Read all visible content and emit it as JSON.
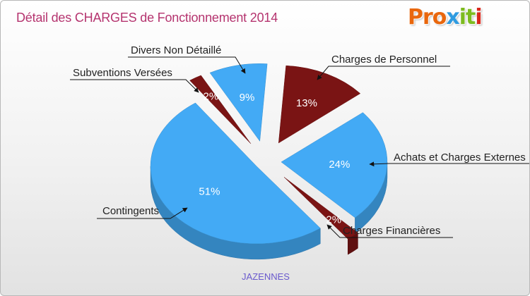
{
  "logo": {
    "parts": [
      "Pro",
      "x",
      "it",
      "i"
    ]
  },
  "colors": {
    "title": "#b5346f",
    "blue": "#43aaf5",
    "red": "#7a1414",
    "subtitle": "#6a5acd"
  },
  "chart_data": {
    "type": "pie",
    "title": "Détail des CHARGES de Fonctionnement 2014",
    "subtitle": "JAZENNES",
    "slices": [
      {
        "name": "Charges de Personnel",
        "value": 13,
        "label": "13%",
        "color": "#7a1414"
      },
      {
        "name": "Achats et Charges Externes",
        "value": 24,
        "label": "24%",
        "color": "#43aaf5"
      },
      {
        "name": "Charges Financières",
        "value": 2,
        "label": "2%",
        "color": "#7a1414"
      },
      {
        "name": "Contingents",
        "value": 51,
        "label": "51%",
        "color": "#43aaf5"
      },
      {
        "name": "Subventions Versées",
        "value": 2,
        "label": "2%",
        "color": "#7a1414"
      },
      {
        "name": "Divers Non Détaillé",
        "value": 9,
        "label": "9%",
        "color": "#43aaf5"
      }
    ]
  }
}
